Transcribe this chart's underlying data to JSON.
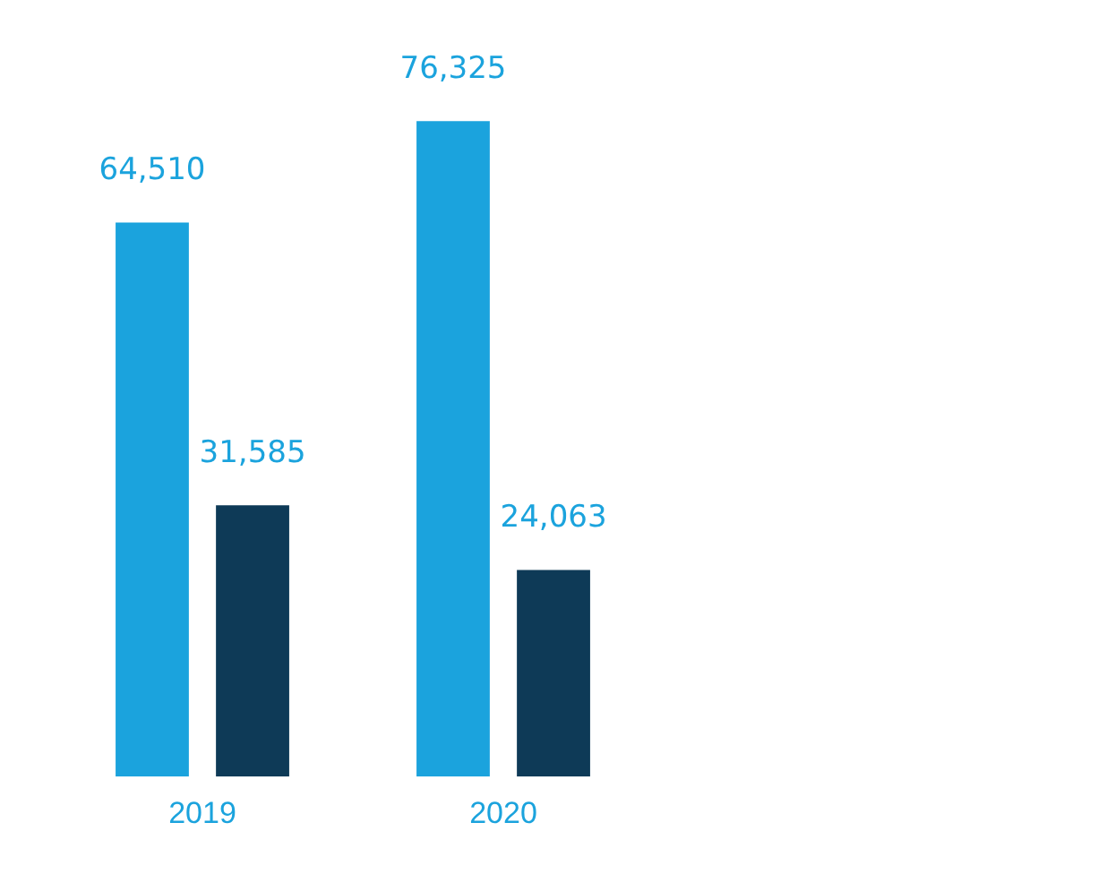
{
  "chart_data": {
    "type": "bar",
    "categories": [
      "2019",
      "2020"
    ],
    "series": [
      {
        "color": "#1ba3dd",
        "values": [
          64510,
          76325
        ],
        "value_labels": [
          "64,510",
          "76,325"
        ]
      },
      {
        "color": "#0e3a57",
        "values": [
          31585,
          24063
        ],
        "value_labels": [
          "31,585",
          "24,063"
        ]
      }
    ],
    "legend": false,
    "grid": false
  }
}
